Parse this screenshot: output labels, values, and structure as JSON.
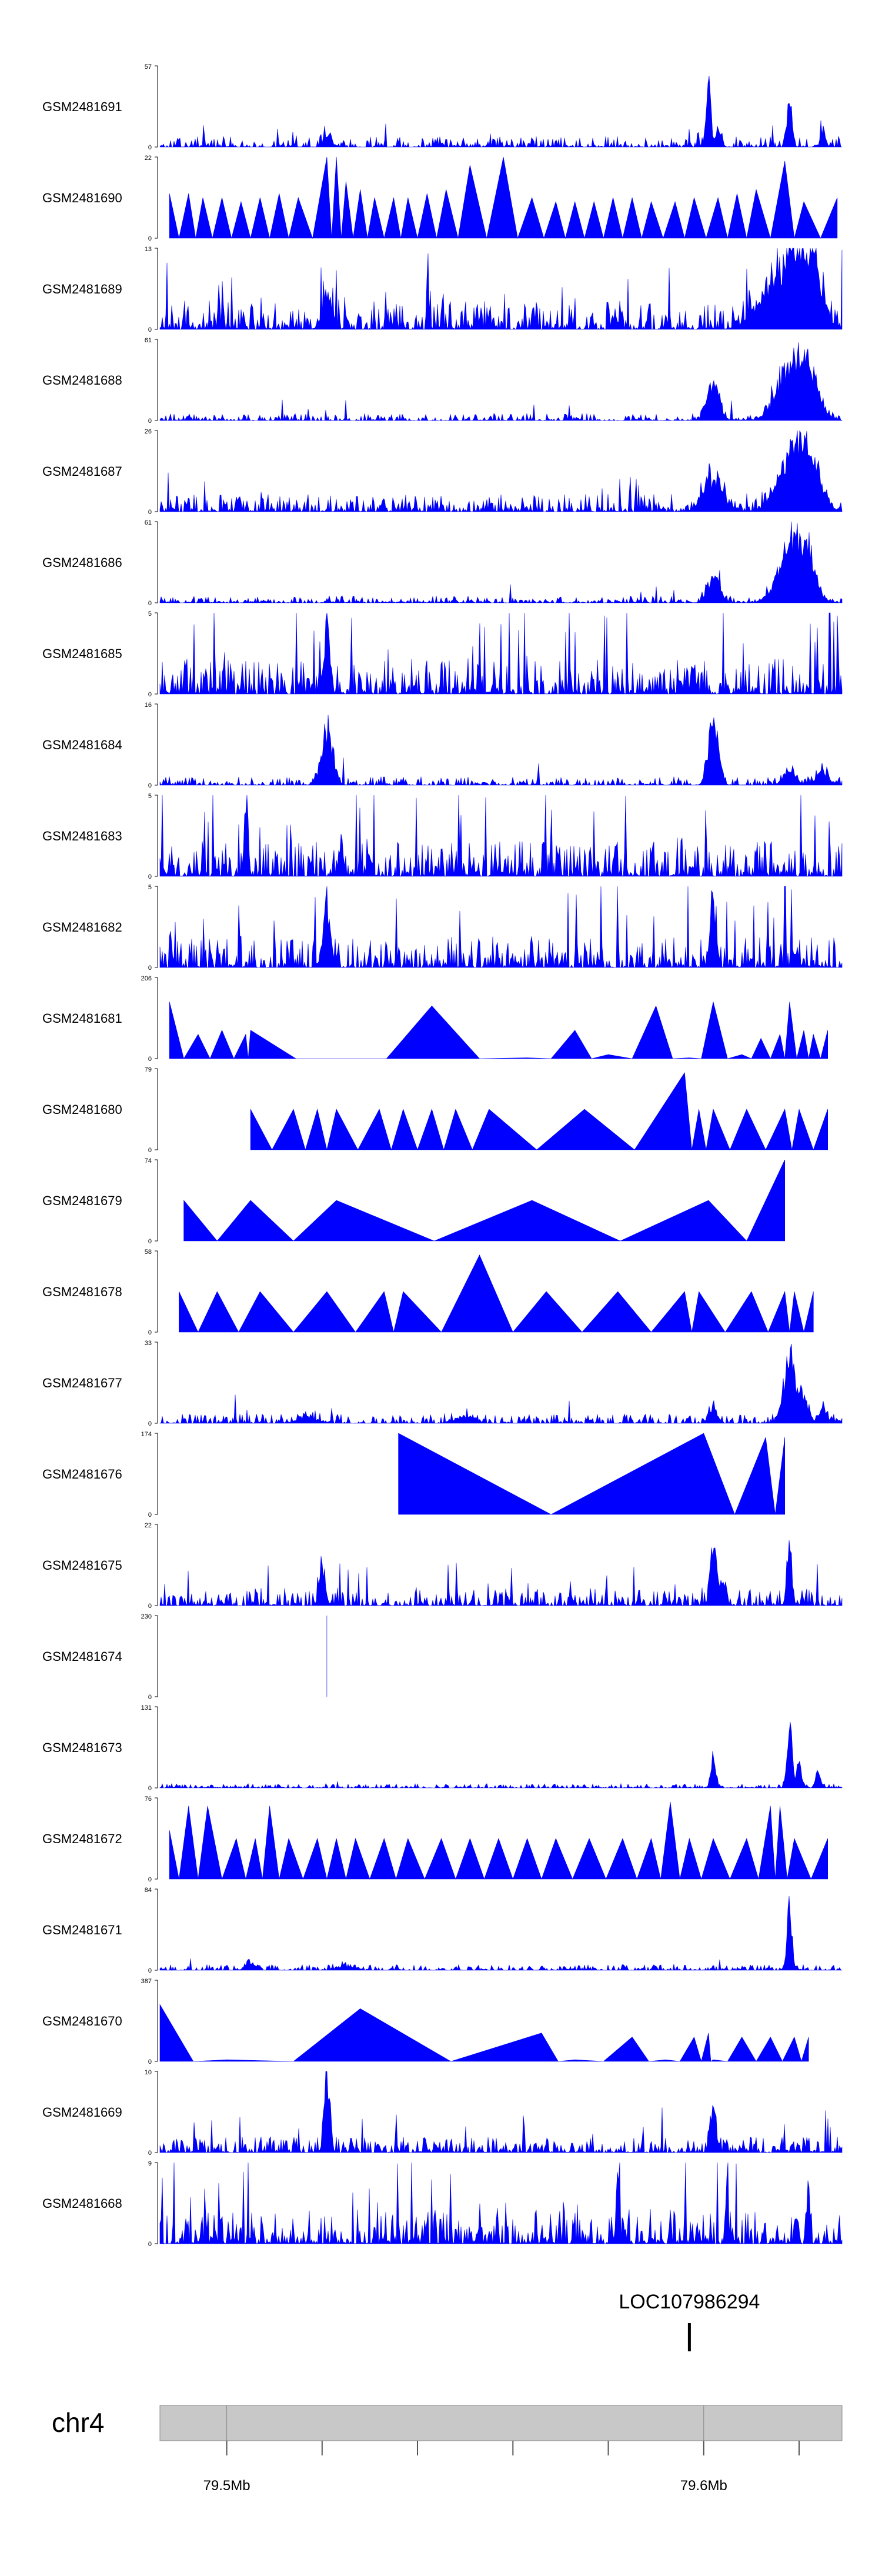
{
  "chart_data": {
    "type": "area",
    "title": "",
    "fill_color": "#0000ff",
    "axis_color": "#000000",
    "x_range": [
      79.486,
      79.629
    ],
    "x_unit": "Mb",
    "tracks": [
      {
        "name": "GSM2481691",
        "ylim": [
          0,
          57
        ],
        "noise": 1.5,
        "style": "spiky",
        "peaks": [
          [
            79.514,
            0.05,
            0.0004
          ],
          [
            79.521,
            0.18,
            0.0008
          ],
          [
            79.545,
            0.06,
            0.0005
          ],
          [
            79.601,
            1.0,
            0.0005
          ],
          [
            79.603,
            0.25,
            0.0005
          ],
          [
            79.618,
            0.72,
            0.0005
          ],
          [
            79.625,
            0.25,
            0.0005
          ]
        ]
      },
      {
        "name": "GSM2481690",
        "ylim": [
          0,
          22
        ],
        "style": "triangles",
        "peaks": [
          [
            79.488,
            0.55
          ],
          [
            79.492,
            0.55
          ],
          [
            79.495,
            0.5
          ],
          [
            79.499,
            0.5
          ],
          [
            79.503,
            0.45
          ],
          [
            79.507,
            0.5
          ],
          [
            79.511,
            0.55
          ],
          [
            79.515,
            0.5
          ],
          [
            79.521,
            1.0
          ],
          [
            79.523,
            1.0
          ],
          [
            79.525,
            0.7
          ],
          [
            79.528,
            0.6
          ],
          [
            79.531,
            0.5
          ],
          [
            79.535,
            0.5
          ],
          [
            79.538,
            0.5
          ],
          [
            79.542,
            0.55
          ],
          [
            79.546,
            0.6
          ],
          [
            79.551,
            0.9
          ],
          [
            79.558,
            1.0
          ],
          [
            79.564,
            0.5
          ],
          [
            79.569,
            0.45
          ],
          [
            79.573,
            0.45
          ],
          [
            79.577,
            0.45
          ],
          [
            79.581,
            0.5
          ],
          [
            79.585,
            0.5
          ],
          [
            79.589,
            0.45
          ],
          [
            79.594,
            0.45
          ],
          [
            79.598,
            0.5
          ],
          [
            79.603,
            0.5
          ],
          [
            79.607,
            0.55
          ],
          [
            79.611,
            0.6
          ],
          [
            79.617,
            0.95
          ],
          [
            79.621,
            0.45
          ],
          [
            79.628,
            0.5
          ]
        ]
      },
      {
        "name": "GSM2481689",
        "ylim": [
          0,
          13
        ],
        "noise": 4,
        "style": "spiky",
        "peaks": [
          [
            79.521,
            0.55,
            0.001
          ],
          [
            79.613,
            0.4,
            0.003
          ],
          [
            79.619,
            1.0,
            0.003
          ],
          [
            79.623,
            0.6,
            0.002
          ]
        ]
      },
      {
        "name": "GSM2481688",
        "ylim": [
          0,
          61
        ],
        "noise": 1.0,
        "style": "spiky",
        "peaks": [
          [
            79.602,
            0.6,
            0.0012
          ],
          [
            79.619,
            1.0,
            0.003
          ],
          [
            79.623,
            0.3,
            0.0015
          ]
        ]
      },
      {
        "name": "GSM2481687",
        "ylim": [
          0,
          26
        ],
        "noise": 2.5,
        "style": "spiky",
        "peaks": [
          [
            79.602,
            0.45,
            0.002
          ],
          [
            79.619,
            1.0,
            0.003
          ],
          [
            79.623,
            0.35,
            0.002
          ]
        ]
      },
      {
        "name": "GSM2481686",
        "ylim": [
          0,
          61
        ],
        "noise": 1.0,
        "style": "spiky",
        "peaks": [
          [
            79.602,
            0.4,
            0.0012
          ],
          [
            79.619,
            1.0,
            0.0028
          ],
          [
            79.622,
            0.3,
            0.0012
          ]
        ]
      },
      {
        "name": "GSM2481685",
        "ylim": [
          0,
          5
        ],
        "noise": 5,
        "style": "spiky",
        "peaks": [
          [
            79.521,
            0.95,
            0.0006
          ]
        ]
      },
      {
        "name": "GSM2481684",
        "ylim": [
          0,
          16
        ],
        "noise": 1.2,
        "style": "spiky",
        "peaks": [
          [
            79.521,
            0.8,
            0.0012
          ],
          [
            79.602,
            1.0,
            0.001
          ],
          [
            79.618,
            0.25,
            0.0012
          ],
          [
            79.625,
            0.2,
            0.0012
          ]
        ]
      },
      {
        "name": "GSM2481683",
        "ylim": [
          0,
          5
        ],
        "noise": 5,
        "style": "spiky",
        "peaks": [
          [
            79.504,
            0.9,
            0.0004
          ],
          [
            79.524,
            0.6,
            0.0004
          ]
        ]
      },
      {
        "name": "GSM2481682",
        "ylim": [
          0,
          5
        ],
        "noise": 4.5,
        "style": "spiky",
        "peaks": [
          [
            79.521,
            0.8,
            0.0008
          ],
          [
            79.602,
            0.95,
            0.0006
          ]
        ]
      },
      {
        "name": "GSM2481681",
        "ylim": [
          0,
          206
        ],
        "style": "triangles",
        "peaks": [
          [
            79.488,
            0.7
          ],
          [
            79.494,
            0.3
          ],
          [
            79.499,
            0.35
          ],
          [
            79.504,
            0.3
          ],
          [
            79.505,
            0.35
          ],
          [
            79.524,
            0.0
          ],
          [
            79.543,
            0.65
          ],
          [
            79.563,
            0.01
          ],
          [
            79.573,
            0.35
          ],
          [
            79.58,
            0.05
          ],
          [
            79.59,
            0.65
          ],
          [
            79.597,
            0.01
          ],
          [
            79.602,
            0.7
          ],
          [
            79.608,
            0.05
          ],
          [
            79.612,
            0.25
          ],
          [
            79.616,
            0.3
          ],
          [
            79.618,
            0.7
          ],
          [
            79.621,
            0.35
          ],
          [
            79.623,
            0.3
          ],
          [
            79.626,
            0.35
          ]
        ]
      },
      {
        "name": "GSM2481680",
        "ylim": [
          0,
          79
        ],
        "style": "triangles",
        "peaks": [
          [
            79.505,
            0.5
          ],
          [
            79.514,
            0.5
          ],
          [
            79.519,
            0.5
          ],
          [
            79.523,
            0.5
          ],
          [
            79.532,
            0.5
          ],
          [
            79.537,
            0.5
          ],
          [
            79.543,
            0.5
          ],
          [
            79.548,
            0.5
          ],
          [
            79.555,
            0.5
          ],
          [
            79.575,
            0.5
          ],
          [
            79.596,
            0.95
          ],
          [
            79.599,
            0.5
          ],
          [
            79.602,
            0.5
          ],
          [
            79.609,
            0.5
          ],
          [
            79.617,
            0.5
          ],
          [
            79.62,
            0.5
          ],
          [
            79.626,
            0.5
          ]
        ]
      },
      {
        "name": "GSM2481679",
        "ylim": [
          0,
          74
        ],
        "style": "triangles",
        "peaks": [
          [
            79.491,
            0.5
          ],
          [
            79.505,
            0.5
          ],
          [
            79.523,
            0.5
          ],
          [
            79.564,
            0.5
          ],
          [
            79.601,
            0.5
          ],
          [
            79.617,
            1.0
          ]
        ]
      },
      {
        "name": "GSM2481678",
        "ylim": [
          0,
          58
        ],
        "style": "triangles",
        "peaks": [
          [
            79.49,
            0.5
          ],
          [
            79.498,
            0.5
          ],
          [
            79.507,
            0.5
          ],
          [
            79.521,
            0.5
          ],
          [
            79.533,
            0.5
          ],
          [
            79.537,
            0.5
          ],
          [
            79.553,
            0.95
          ],
          [
            79.567,
            0.5
          ],
          [
            79.582,
            0.5
          ],
          [
            79.596,
            0.5
          ],
          [
            79.599,
            0.5
          ],
          [
            79.61,
            0.5
          ],
          [
            79.617,
            0.5
          ],
          [
            79.619,
            0.5
          ],
          [
            79.623,
            0.5
          ]
        ]
      },
      {
        "name": "GSM2481677",
        "ylim": [
          0,
          33
        ],
        "noise": 1.3,
        "style": "spiky",
        "peaks": [
          [
            79.517,
            0.08,
            0.002
          ],
          [
            79.55,
            0.1,
            0.002
          ],
          [
            79.602,
            0.25,
            0.0008
          ],
          [
            79.618,
            1.0,
            0.0012
          ],
          [
            79.621,
            0.35,
            0.0008
          ],
          [
            79.625,
            0.2,
            0.0008
          ]
        ]
      },
      {
        "name": "GSM2481676",
        "ylim": [
          0,
          174
        ],
        "style": "triangles",
        "peaks": [
          [
            79.536,
            1.0
          ],
          [
            79.6,
            1.0
          ],
          [
            79.613,
            0.95
          ],
          [
            79.617,
            0.95
          ]
        ]
      },
      {
        "name": "GSM2481675",
        "ylim": [
          0,
          22
        ],
        "noise": 2.5,
        "style": "spiky",
        "peaks": [
          [
            79.52,
            0.6,
            0.0006
          ],
          [
            79.602,
            1.0,
            0.0006
          ],
          [
            79.604,
            0.4,
            0.0005
          ],
          [
            79.618,
            0.95,
            0.0005
          ]
        ]
      },
      {
        "name": "GSM2481674",
        "ylim": [
          0,
          230
        ],
        "style": "triangles",
        "peaks": [
          [
            79.521,
            1.0
          ]
        ]
      },
      {
        "name": "GSM2481673",
        "ylim": [
          0,
          131
        ],
        "noise": 0.6,
        "style": "spiky",
        "peaks": [
          [
            79.602,
            0.5,
            0.0005
          ],
          [
            79.618,
            1.0,
            0.0005
          ],
          [
            79.62,
            0.4,
            0.0005
          ],
          [
            79.624,
            0.25,
            0.0005
          ]
        ]
      },
      {
        "name": "GSM2481672",
        "ylim": [
          0,
          76
        ],
        "style": "triangles",
        "peaks": [
          [
            79.488,
            0.6
          ],
          [
            79.492,
            0.9
          ],
          [
            79.496,
            0.9
          ],
          [
            79.502,
            0.5
          ],
          [
            79.506,
            0.5
          ],
          [
            79.509,
            0.9
          ],
          [
            79.513,
            0.5
          ],
          [
            79.519,
            0.5
          ],
          [
            79.523,
            0.5
          ],
          [
            79.527,
            0.5
          ],
          [
            79.533,
            0.5
          ],
          [
            79.538,
            0.5
          ],
          [
            79.545,
            0.5
          ],
          [
            79.551,
            0.5
          ],
          [
            79.557,
            0.5
          ],
          [
            79.563,
            0.5
          ],
          [
            79.569,
            0.5
          ],
          [
            79.576,
            0.5
          ],
          [
            79.583,
            0.5
          ],
          [
            79.589,
            0.5
          ],
          [
            79.593,
            0.95
          ],
          [
            79.597,
            0.5
          ],
          [
            79.602,
            0.5
          ],
          [
            79.609,
            0.5
          ],
          [
            79.614,
            0.9
          ],
          [
            79.616,
            0.9
          ],
          [
            79.619,
            0.5
          ],
          [
            79.626,
            0.5
          ]
        ]
      },
      {
        "name": "GSM2481671",
        "ylim": [
          0,
          84
        ],
        "noise": 0.8,
        "style": "spiky",
        "peaks": [
          [
            79.505,
            0.1,
            0.001
          ],
          [
            79.525,
            0.06,
            0.002
          ],
          [
            79.618,
            1.0,
            0.0005
          ]
        ]
      },
      {
        "name": "GSM2481670",
        "ylim": [
          0,
          387
        ],
        "style": "triangles",
        "peaks": [
          [
            79.486,
            0.7
          ],
          [
            79.5,
            0.02
          ],
          [
            79.528,
            0.65
          ],
          [
            79.566,
            0.35
          ],
          [
            79.573,
            0.02
          ],
          [
            79.585,
            0.3
          ],
          [
            79.592,
            0.02
          ],
          [
            79.598,
            0.3
          ],
          [
            79.601,
            0.35
          ],
          [
            79.602,
            0.02
          ],
          [
            79.608,
            0.3
          ],
          [
            79.614,
            0.3
          ],
          [
            79.619,
            0.3
          ],
          [
            79.622,
            0.3
          ]
        ]
      },
      {
        "name": "GSM2481669",
        "ylim": [
          0,
          10
        ],
        "noise": 2.2,
        "style": "spiky",
        "peaks": [
          [
            79.521,
            1.0,
            0.0006
          ],
          [
            79.602,
            0.8,
            0.0006
          ]
        ]
      },
      {
        "name": "GSM2481668",
        "ylim": [
          0,
          9
        ],
        "noise": 5,
        "style": "spiky",
        "peaks": [
          [
            79.582,
            0.95,
            0.0003
          ],
          [
            79.622,
            0.9,
            0.0003
          ]
        ]
      }
    ],
    "gene": {
      "label": "LOC107986294",
      "position": 79.597
    },
    "chromosome": {
      "label": "chr4"
    },
    "axis": {
      "tick_values": [
        79.5,
        79.52,
        79.54,
        79.56,
        79.58,
        79.6,
        79.62
      ],
      "tick_labels": [
        "79.5Mb",
        "",
        "",
        "",
        "",
        "79.6Mb",
        ""
      ]
    }
  }
}
